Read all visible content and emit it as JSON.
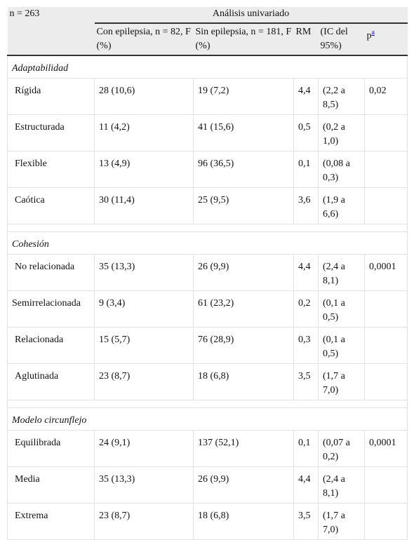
{
  "header": {
    "n": "n = 263",
    "group": "Análisis univariado",
    "columns": [
      "Con epilepsia, n = 82, F (%)",
      "Sin epilepsia, n = 181, F (%)",
      "RM",
      "(IC del 95%)",
      "p"
    ],
    "p_note": "a"
  },
  "sections": [
    {
      "title": "Adaptabilidad",
      "rows": [
        [
          "Rígida",
          "28 (10,6)",
          "19 (7,2)",
          "4,4",
          "(2,2 a 8,5)",
          "0,02"
        ],
        [
          "Estructurada",
          "11 (4,2)",
          "41 (15,6)",
          "0,5",
          "(0,2 a 1,0)"
        ],
        [
          "Flexible",
          "13 (4,9)",
          "96 (36,5)",
          "0,1",
          "(0,08 a 0,3)"
        ],
        [
          "Caótica",
          "30 (11,4)",
          "25 (9,5)",
          "3,6",
          "(1,9 a 6,6)"
        ]
      ]
    },
    {
      "title": "Cohesión",
      "rows": [
        [
          "No relacionada",
          "35 (13,3)",
          "26 (9,9)",
          "4,4",
          "(2,4 a 8,1)",
          "0,0001"
        ],
        [
          "Semirrelacionada",
          "9 (3,4)",
          "61 (23,2)",
          "0,2",
          "(0,1 a 0,5)"
        ],
        [
          "Relacionada",
          "15 (5,7)",
          "76 (28,9)",
          "0,3",
          "(0,1 a 0,5)"
        ],
        [
          "Aglutinada",
          "23 (8,7)",
          "18 (6,8)",
          "3,5",
          "(1,7 a 7,0)"
        ]
      ]
    },
    {
      "title": "Modelo circunflejo",
      "rows": [
        [
          "Equilibrada",
          "24 (9,1)",
          "137 (52,1)",
          "0,1",
          "(0,07 a 0,2)",
          "0,0001"
        ],
        [
          "Media",
          "35 (13,3)",
          "26 (9,9)",
          "4,4",
          "(2,4 a 8,1)"
        ],
        [
          "Extrema",
          "23 (8,7)",
          "18 (6,8)",
          "3,5",
          "(1,7 a 7,0)"
        ]
      ]
    }
  ]
}
